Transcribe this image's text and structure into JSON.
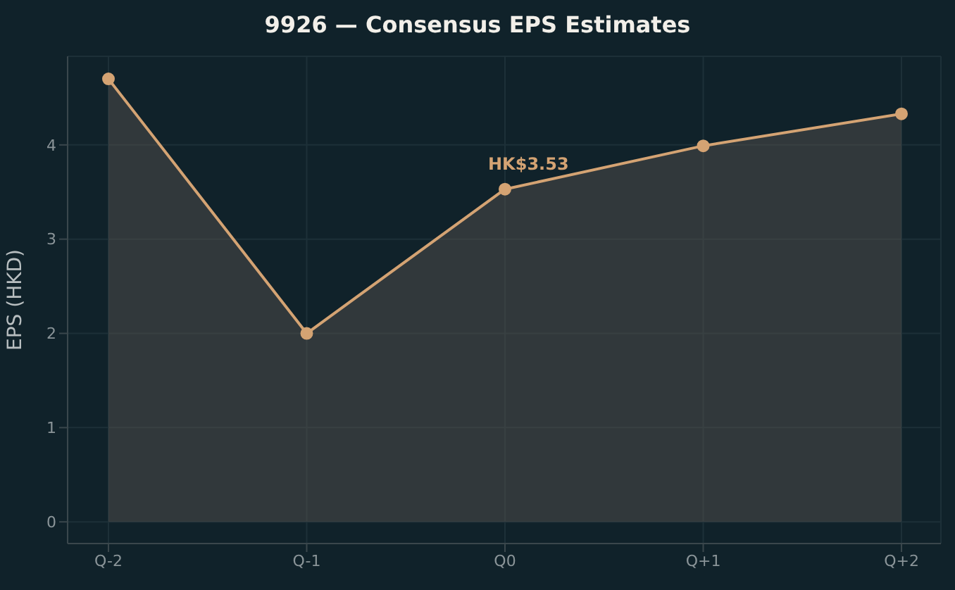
{
  "chart_data": {
    "type": "area",
    "title": "9926 — Consensus EPS Estimates",
    "ylabel": "EPS (HKD)",
    "categories": [
      "Q-2",
      "Q-1",
      "Q0",
      "Q+1",
      "Q+2"
    ],
    "series": [
      {
        "color": "#d4a373",
        "values": [
          4.7,
          2.0,
          3.53,
          3.99,
          4.33
        ]
      }
    ],
    "annotations": [
      {
        "text": "HK$3.53",
        "x": "Q0",
        "y": 3.53
      }
    ],
    "ylim": [
      -0.23,
      4.94
    ],
    "yticks": [
      0,
      1,
      2,
      3,
      4
    ],
    "grid": true,
    "marker": "circle"
  }
}
